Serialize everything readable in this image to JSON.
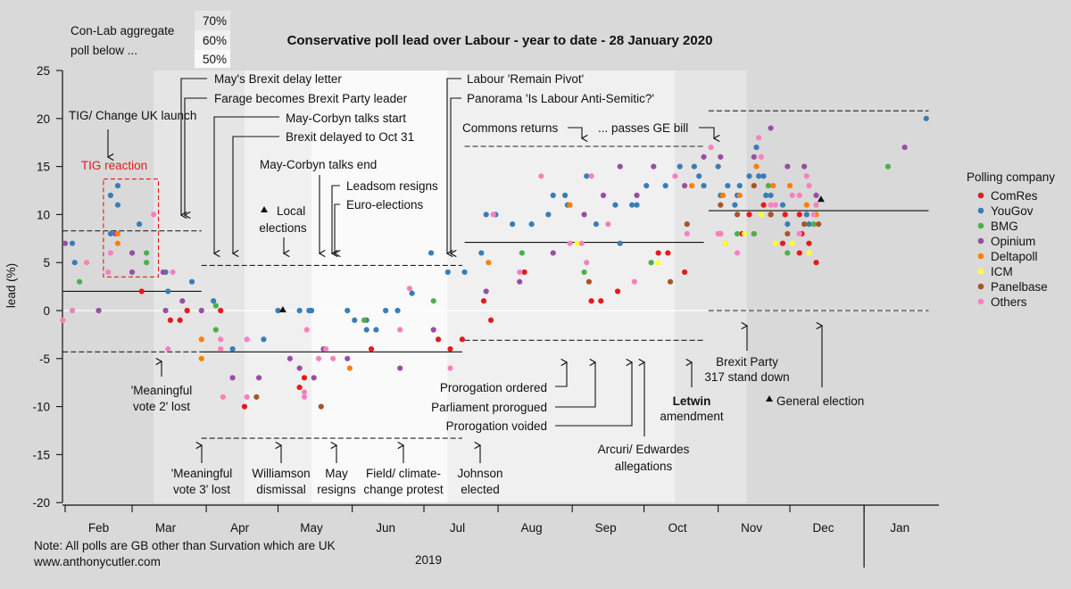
{
  "header": {
    "agg_label_1": "Con-Lab aggregate",
    "agg_label_2": "poll below ...",
    "shade_keys": [
      "70%",
      "60%",
      "50%"
    ],
    "note": "Note: All polls are GB other than Survation which are UK",
    "website": "www.anthonycutler.com"
  },
  "annotations": {
    "may_delay_letter": "May's Brexit delay letter",
    "farage": "Farage becomes Brexit Party leader",
    "talks_start": "May-Corbyn talks start",
    "delayed_oct31": "Brexit delayed to Oct 31",
    "talks_end": "May-Corbyn talks end",
    "leadsom": "Leadsom resigns",
    "euro": "Euro-elections",
    "local_1": "Local",
    "local_2": "elections",
    "remain_pivot": "Labour 'Remain Pivot'",
    "panorama": "Panorama 'Is Labour Anti-Semitic?'",
    "tig_launch": "TIG/ Change UK launch",
    "tig_reaction": "TIG reaction",
    "commons_returns": "Commons returns",
    "passes_ge": "... passes GE bill",
    "mv2_1": "'Meaningful",
    "mv2_2": "vote 2' lost",
    "mv3_1": "'Meaningful",
    "mv3_2": "vote 3' lost",
    "williamson_1": "Williamson",
    "williamson_2": "dismissal",
    "may_resigns_1": "May",
    "may_resigns_2": "resigns",
    "field_1": "Field/ climate-",
    "field_2": "change protest",
    "johnson_1": "Johnson",
    "johnson_2": "elected",
    "prorogation_ordered": "Prorogation ordered",
    "prorogued": "Parliament prorogued",
    "voided": "Prorogation voided",
    "arcuri_1": "Arcuri/ Edwardes",
    "arcuri_2": "allegations",
    "letwin_1": "Letwin",
    "letwin_2": "amendment",
    "brexit_party_1": "Brexit Party",
    "brexit_party_2": "317 stand down",
    "general_election": "General election"
  },
  "chart_data": {
    "type": "scatter",
    "title": "Conservative poll lead over Labour - year to date - 28 January 2020",
    "xlabel": "2019",
    "ylabel": "lead (%)",
    "x_units": "day of year 2019 (0 = 1 Jan 2019)",
    "xlim": [
      30,
      396
    ],
    "ylim": [
      -20,
      25
    ],
    "y_ticks": [
      25,
      20,
      15,
      10,
      5,
      0,
      -5,
      -10,
      -15,
      -20
    ],
    "month_ticks": [
      31,
      59,
      90,
      120,
      151,
      181,
      212,
      243,
      273,
      304,
      334,
      365
    ],
    "month_labels": [
      {
        "label": "Feb",
        "day": 45
      },
      {
        "label": "Mar",
        "day": 73
      },
      {
        "label": "Apr",
        "day": 104
      },
      {
        "label": "May",
        "day": 134
      },
      {
        "label": "Jun",
        "day": 165
      },
      {
        "label": "Jul",
        "day": 195
      },
      {
        "label": "Aug",
        "day": 226
      },
      {
        "label": "Sep",
        "day": 257
      },
      {
        "label": "Oct",
        "day": 287
      },
      {
        "label": "Nov",
        "day": 318
      },
      {
        "label": "Dec",
        "day": 348
      },
      {
        "label": "Jan",
        "day": 380
      }
    ],
    "year_divider_day": 365,
    "legend": {
      "title": "Polling company",
      "placement": "right"
    },
    "shade_bands": [
      {
        "from": 68,
        "to": 106,
        "key": "70%",
        "color": "#e5e5e5"
      },
      {
        "from": 106,
        "to": 134,
        "key": "60%",
        "color": "#f0f0f0"
      },
      {
        "from": 134,
        "to": 191,
        "key": "50%",
        "color": "#fafafa"
      },
      {
        "from": 191,
        "to": 286,
        "key": "60%",
        "color": "#f0f0f0"
      },
      {
        "from": 286,
        "to": 316,
        "key": "70%",
        "color": "#e5e5e5"
      }
    ],
    "shade_key_colors": [
      "#e5e5e5",
      "#f0f0f0",
      "#fafafa"
    ],
    "period_averages": [
      {
        "from": 30,
        "to": 88,
        "mean": 2.0,
        "upper": 8.3,
        "lower": -4.3
      },
      {
        "from": 88,
        "to": 197,
        "mean": -4.3,
        "upper": 4.7,
        "lower": -13.3
      },
      {
        "from": 198,
        "to": 298,
        "mean": 7.1,
        "upper": 17.1,
        "lower": -3.1
      },
      {
        "from": 300,
        "to": 392,
        "mean": 10.4,
        "upper": 20.8,
        "lower": 0
      }
    ],
    "events": [
      {
        "name": "Local elections",
        "day": 122,
        "lead": 0
      },
      {
        "name": "General election",
        "day": 347,
        "lead": 11.5
      }
    ],
    "tig_reaction_box": {
      "from": 47,
      "to": 70,
      "ymin": 3.5,
      "ymax": 13.7
    },
    "series": [
      {
        "name": "ComRes",
        "color": "#e41a1c",
        "points": [
          [
            63,
            2
          ],
          [
            82,
            0
          ],
          [
            75,
            -1
          ],
          [
            79,
            -1
          ],
          [
            96,
            0
          ],
          [
            106,
            -10
          ],
          [
            159,
            -4
          ],
          [
            131,
            -7
          ],
          [
            129,
            -8
          ],
          [
            187,
            -3
          ],
          [
            197,
            -3
          ],
          [
            192,
            -4
          ],
          [
            209,
            -1
          ],
          [
            206,
            1
          ],
          [
            251,
            1
          ],
          [
            255,
            1
          ],
          [
            262,
            2
          ],
          [
            223,
            4
          ],
          [
            279,
            6
          ],
          [
            283,
            6
          ],
          [
            290,
            4
          ],
          [
            323,
            11
          ],
          [
            317,
            10
          ],
          [
            326,
            10
          ],
          [
            332,
            10
          ],
          [
            338,
            10
          ],
          [
            305,
            8
          ],
          [
            314,
            8
          ],
          [
            319,
            8
          ],
          [
            339,
            8
          ],
          [
            307,
            7
          ],
          [
            331,
            7
          ],
          [
            342,
            7
          ],
          [
            338,
            6
          ],
          [
            345,
            5
          ]
        ]
      },
      {
        "name": "YouGov",
        "color": "#377eb8",
        "points": [
          [
            53,
            13
          ],
          [
            50,
            12
          ],
          [
            53,
            11
          ],
          [
            62,
            9
          ],
          [
            50,
            8
          ],
          [
            34,
            7
          ],
          [
            35,
            5
          ],
          [
            73,
            4
          ],
          [
            84,
            3
          ],
          [
            74,
            2
          ],
          [
            93,
            1
          ],
          [
            114,
            -3
          ],
          [
            101,
            -4
          ],
          [
            120,
            0
          ],
          [
            129,
            0
          ],
          [
            133,
            0
          ],
          [
            134,
            0
          ],
          [
            149,
            0
          ],
          [
            165,
            0
          ],
          [
            170,
            0
          ],
          [
            152,
            -1
          ],
          [
            157,
            -1
          ],
          [
            157,
            -2
          ],
          [
            161,
            -2
          ],
          [
            191,
            4
          ],
          [
            198,
            4
          ],
          [
            176,
            1.8
          ],
          [
            184,
            6
          ],
          [
            288,
            15
          ],
          [
            294,
            15
          ],
          [
            249,
            14
          ],
          [
            296,
            14
          ],
          [
            274,
            13
          ],
          [
            282,
            13
          ],
          [
            298,
            13
          ],
          [
            235,
            12
          ],
          [
            240,
            12
          ],
          [
            241,
            11
          ],
          [
            261,
            11
          ],
          [
            268,
            11
          ],
          [
            270,
            11
          ],
          [
            207,
            10
          ],
          [
            211,
            10
          ],
          [
            233,
            10
          ],
          [
            218,
            9
          ],
          [
            226,
            9
          ],
          [
            253,
            9
          ],
          [
            263,
            7
          ],
          [
            205,
            6
          ],
          [
            391,
            20
          ],
          [
            320,
            17
          ],
          [
            304,
            15
          ],
          [
            317,
            14
          ],
          [
            321,
            14
          ],
          [
            323,
            14
          ],
          [
            308,
            13
          ],
          [
            313,
            13
          ],
          [
            305,
            12
          ],
          [
            312,
            12
          ],
          [
            324,
            12
          ],
          [
            326,
            12
          ],
          [
            311,
            11
          ],
          [
            331,
            11
          ],
          [
            341,
            10
          ],
          [
            333,
            9
          ],
          [
            342,
            9
          ]
        ]
      },
      {
        "name": "BMG",
        "color": "#4daf4a",
        "points": [
          [
            37,
            3
          ],
          [
            65,
            6
          ],
          [
            65,
            5
          ],
          [
            94,
            0.5
          ],
          [
            94,
            -2
          ],
          [
            156,
            -1
          ],
          [
            185,
            1
          ],
          [
            222,
            6
          ],
          [
            276,
            5
          ],
          [
            248,
            4
          ],
          [
            375,
            15
          ],
          [
            325,
            13
          ],
          [
            344,
            9
          ],
          [
            312,
            8
          ],
          [
            319,
            8
          ],
          [
            333,
            6
          ]
        ]
      },
      {
        "name": "Opinium",
        "color": "#984ea3",
        "points": [
          [
            31,
            7
          ],
          [
            52,
            8
          ],
          [
            59,
            6
          ],
          [
            59,
            4
          ],
          [
            72,
            4
          ],
          [
            80,
            1
          ],
          [
            45,
            0
          ],
          [
            73,
            0
          ],
          [
            88,
            0
          ],
          [
            101,
            -7
          ],
          [
            112,
            -7
          ],
          [
            139,
            -4
          ],
          [
            125,
            -5
          ],
          [
            149,
            -5
          ],
          [
            129,
            -6
          ],
          [
            171,
            -6
          ],
          [
            135,
            -7
          ],
          [
            185,
            -2
          ],
          [
            298,
            16
          ],
          [
            263,
            15
          ],
          [
            277,
            15
          ],
          [
            290,
            13
          ],
          [
            256,
            12
          ],
          [
            270,
            12
          ],
          [
            248,
            10
          ],
          [
            235,
            6
          ],
          [
            221,
            3
          ],
          [
            207,
            2
          ],
          [
            326,
            19
          ],
          [
            305,
            16
          ],
          [
            319,
            16
          ],
          [
            333,
            15
          ],
          [
            340,
            15
          ],
          [
            345,
            12
          ],
          [
            382,
            17
          ]
        ]
      },
      {
        "name": "Deltapoll",
        "color": "#ff7f00",
        "points": [
          [
            53,
            8
          ],
          [
            53,
            7
          ],
          [
            88,
            -3
          ],
          [
            88,
            -5
          ],
          [
            150,
            -6
          ],
          [
            242,
            11
          ],
          [
            208,
            5
          ],
          [
            293,
            13
          ],
          [
            320,
            15
          ],
          [
            327,
            13
          ],
          [
            334,
            13
          ],
          [
            306,
            12
          ],
          [
            313,
            12
          ],
          [
            341,
            11
          ],
          [
            345,
            10
          ]
        ]
      },
      {
        "name": "ICM",
        "color": "#ffff33",
        "points": [
          [
            245,
            7
          ],
          [
            279,
            5
          ],
          [
            322,
            10
          ],
          [
            315,
            8
          ],
          [
            307,
            7
          ],
          [
            328,
            7
          ],
          [
            335,
            7
          ],
          [
            342,
            6
          ]
        ]
      },
      {
        "name": "Panelbase",
        "color": "#a65628",
        "points": [
          [
            111,
            -9
          ],
          [
            138,
            -10
          ],
          [
            291,
            9
          ],
          [
            250,
            3
          ],
          [
            284,
            3
          ],
          [
            319,
            13
          ],
          [
            305,
            11
          ],
          [
            312,
            10
          ],
          [
            326,
            10
          ],
          [
            340,
            9
          ],
          [
            346,
            9
          ],
          [
            333,
            8
          ]
        ]
      },
      {
        "name": "Others",
        "color": "#f781bf",
        "points": [
          [
            68,
            10
          ],
          [
            50,
            6
          ],
          [
            40,
            5
          ],
          [
            49,
            4
          ],
          [
            76,
            4
          ],
          [
            34,
            0
          ],
          [
            30,
            -1
          ],
          [
            96,
            -3
          ],
          [
            107,
            -3
          ],
          [
            74,
            -4
          ],
          [
            96,
            -4
          ],
          [
            97,
            -9
          ],
          [
            107,
            -9
          ],
          [
            132,
            -2
          ],
          [
            171,
            -2
          ],
          [
            140,
            -4
          ],
          [
            137,
            -5
          ],
          [
            143,
            -5
          ],
          [
            192,
            -6
          ],
          [
            131,
            -8.5
          ],
          [
            131,
            -9
          ],
          [
            175,
            2.3
          ],
          [
            301,
            17
          ],
          [
            230,
            14
          ],
          [
            251,
            14
          ],
          [
            286,
            14
          ],
          [
            210,
            10
          ],
          [
            258,
            9
          ],
          [
            291,
            8
          ],
          [
            242,
            7
          ],
          [
            247,
            7
          ],
          [
            249,
            5
          ],
          [
            221,
            4
          ],
          [
            269,
            3
          ],
          [
            321,
            18
          ],
          [
            322,
            16
          ],
          [
            341,
            14
          ],
          [
            342,
            13
          ],
          [
            335,
            12
          ],
          [
            338,
            12
          ],
          [
            326,
            11
          ],
          [
            328,
            11
          ],
          [
            345,
            11
          ],
          [
            344,
            10
          ],
          [
            304,
            8
          ],
          [
            305,
            8
          ],
          [
            338,
            8
          ],
          [
            312,
            6
          ]
        ]
      }
    ]
  }
}
